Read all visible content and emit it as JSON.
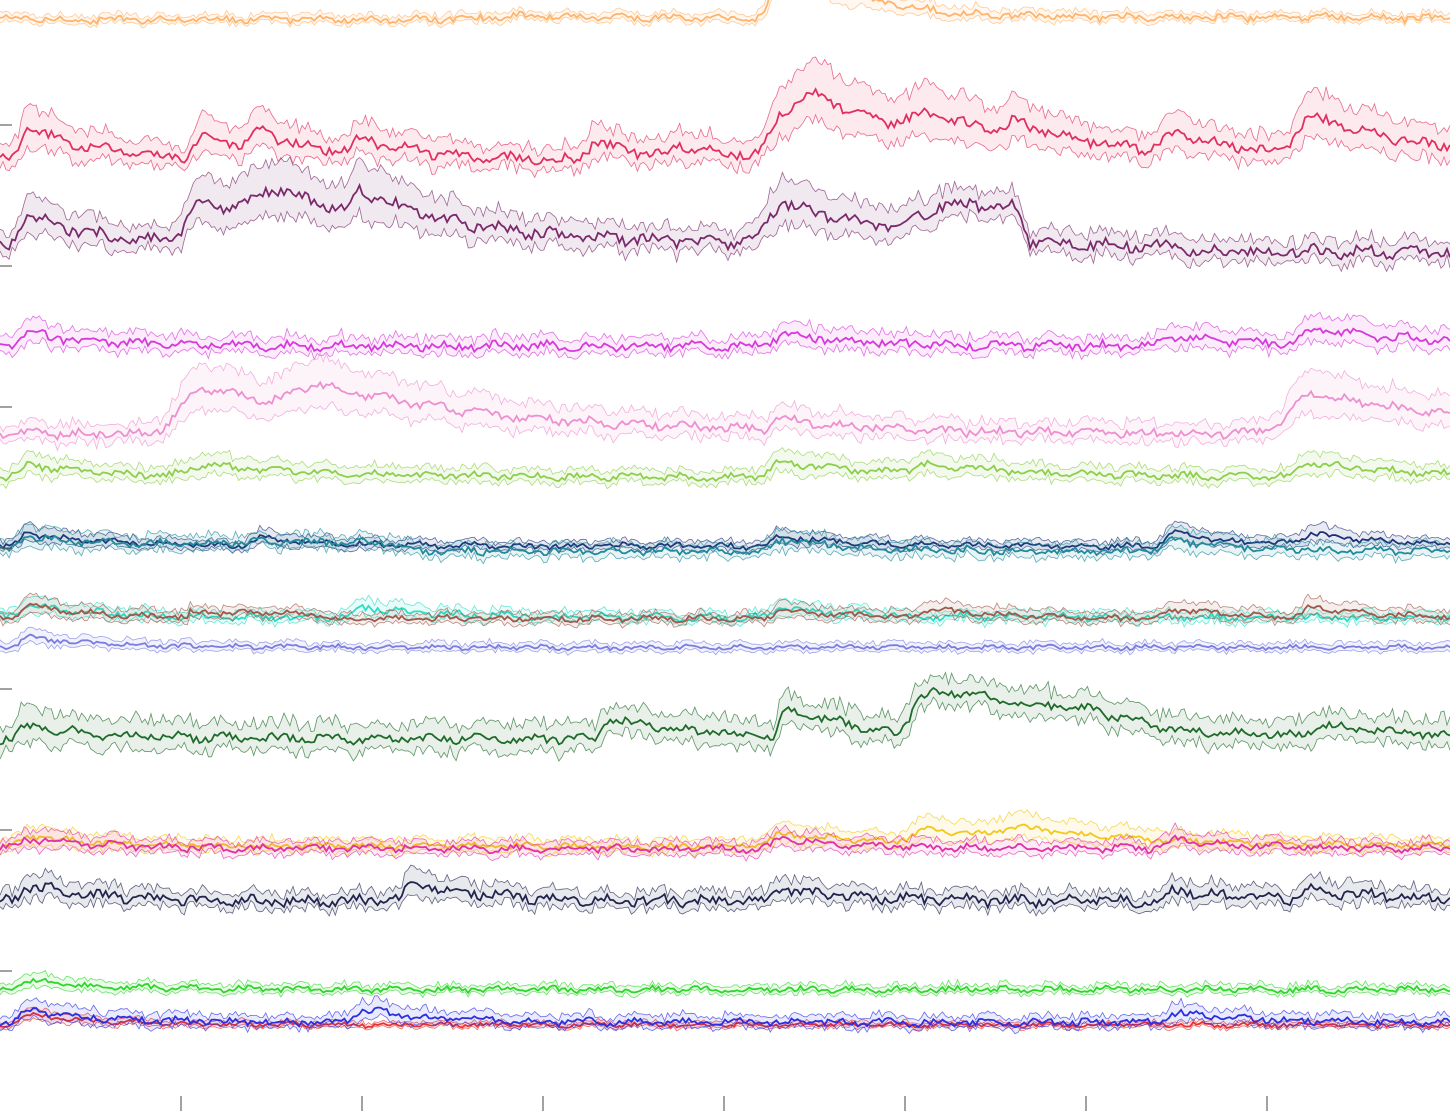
{
  "chart_data": {
    "type": "line",
    "title": "",
    "xlabel": "",
    "ylabel": "",
    "grid": false,
    "legend": "none",
    "x_ticks": 7,
    "y_ticks": 7,
    "series": [
      {
        "color": "#ffb46b",
        "band": 0.18,
        "base": [
          [
            0,
            0.62
          ],
          [
            0.06,
            0.55
          ],
          [
            0.14,
            0.6
          ],
          [
            0.28,
            0.55
          ],
          [
            0.36,
            0.72
          ],
          [
            0.52,
            0.6
          ],
          [
            0.66,
            0.58
          ],
          [
            0.78,
            0.62
          ],
          [
            0.9,
            0.66
          ],
          [
            1,
            0.62
          ]
        ],
        "peaks": [
          [
            0.54,
            2.2,
            0.012
          ]
        ],
        "noise": 0.12,
        "row": 0
      },
      {
        "color": "#e0305f",
        "band": 0.45,
        "base": [
          [
            0,
            0.55
          ],
          [
            1,
            0.55
          ]
        ],
        "peaks": [
          [
            0.02,
            1.3,
            0.01
          ],
          [
            0.14,
            0.9,
            0.01
          ],
          [
            0.18,
            0.7,
            0.01
          ],
          [
            0.25,
            0.6,
            0.01
          ],
          [
            0.41,
            0.65,
            0.01
          ],
          [
            0.47,
            0.45,
            0.01
          ],
          [
            0.54,
            1.6,
            0.015
          ],
          [
            0.565,
            1.35,
            0.03
          ],
          [
            0.64,
            0.8,
            0.02
          ],
          [
            0.7,
            0.5,
            0.01
          ],
          [
            0.81,
            0.7,
            0.01
          ],
          [
            0.905,
            1.5,
            0.02
          ]
        ],
        "noise": 0.18,
        "row": 1
      },
      {
        "color": "#7a2a6b",
        "band": 0.45,
        "base": [
          [
            0,
            0.55
          ],
          [
            0.62,
            0.55
          ],
          [
            0.63,
            1.0
          ],
          [
            0.64,
            1.35
          ],
          [
            0.655,
            1.8
          ],
          [
            0.7,
            1.8
          ],
          [
            0.71,
            0.45
          ],
          [
            0.81,
            0.45
          ],
          [
            0.82,
            0.3
          ],
          [
            1,
            0.3
          ]
        ],
        "peaks": [
          [
            0.02,
            1.2,
            0.01
          ],
          [
            0.14,
            1.6,
            0.02
          ],
          [
            0.19,
            1.3,
            0.03
          ],
          [
            0.25,
            0.9,
            0.01
          ],
          [
            0.54,
            1.6,
            0.02
          ]
        ],
        "noise": 0.2,
        "row": 2
      },
      {
        "color": "#d63adb",
        "band": 0.35,
        "base": [
          [
            0,
            0.55
          ],
          [
            1,
            0.55
          ]
        ],
        "peaks": [
          [
            0.02,
            0.5,
            0.01
          ],
          [
            0.54,
            0.5,
            0.01
          ],
          [
            0.81,
            0.4,
            0.01
          ],
          [
            0.91,
            0.6,
            0.02
          ]
        ],
        "noise": 0.15,
        "row": 3
      },
      {
        "color": "#ee8fd0",
        "band": 0.4,
        "base": [
          [
            0,
            0.45
          ],
          [
            1,
            0.45
          ]
        ],
        "peaks": [
          [
            0.14,
            1.8,
            0.03
          ],
          [
            0.22,
            1.0,
            0.03
          ],
          [
            0.54,
            0.45,
            0.01
          ],
          [
            0.905,
            1.6,
            0.03
          ]
        ],
        "noise": 0.15,
        "row": 4
      },
      {
        "color": "#8ccf4a",
        "band": 0.28,
        "base": [
          [
            0,
            0.5
          ],
          [
            1,
            0.5
          ]
        ],
        "peaks": [
          [
            0.02,
            0.5,
            0.01
          ],
          [
            0.14,
            0.45,
            0.02
          ],
          [
            0.54,
            0.6,
            0.015
          ],
          [
            0.64,
            0.4,
            0.02
          ],
          [
            0.905,
            0.55,
            0.015
          ]
        ],
        "noise": 0.12,
        "row": 5
      },
      {
        "color": "#1f2f78",
        "band": 0.2,
        "base": [
          [
            0,
            0.55
          ],
          [
            1,
            0.55
          ]
        ],
        "peaks": [
          [
            0.02,
            0.5,
            0.01
          ],
          [
            0.18,
            0.3,
            0.01
          ],
          [
            0.54,
            0.4,
            0.01
          ],
          [
            0.81,
            0.5,
            0.01
          ],
          [
            0.905,
            0.45,
            0.01
          ]
        ],
        "noise": 0.1,
        "row": 6
      },
      {
        "color": "#1f8a9a",
        "band": 0.3,
        "base": [
          [
            0,
            0.4
          ],
          [
            0.18,
            0.7
          ],
          [
            0.27,
            0.7
          ],
          [
            0.28,
            0.35
          ],
          [
            1,
            0.35
          ]
        ],
        "peaks": [
          [
            0.02,
            0.5,
            0.01
          ],
          [
            0.54,
            0.45,
            0.01
          ],
          [
            0.81,
            0.45,
            0.01
          ]
        ],
        "noise": 0.12,
        "row": 6
      },
      {
        "color": "#28e0c8",
        "band": 0.22,
        "base": [
          [
            0,
            0.5
          ],
          [
            1,
            0.5
          ]
        ],
        "peaks": [
          [
            0.02,
            0.45,
            0.01
          ],
          [
            0.25,
            0.4,
            0.01
          ],
          [
            0.54,
            0.35,
            0.01
          ]
        ],
        "noise": 0.12,
        "row": 7
      },
      {
        "color": "#a0584a",
        "band": 0.22,
        "base": [
          [
            0,
            0.45
          ],
          [
            0.13,
            0.45
          ],
          [
            0.13,
            0.65
          ],
          [
            0.22,
            0.65
          ],
          [
            0.23,
            0.45
          ],
          [
            1,
            0.45
          ]
        ],
        "peaks": [
          [
            0.02,
            0.5,
            0.01
          ],
          [
            0.54,
            0.35,
            0.01
          ],
          [
            0.64,
            0.35,
            0.01
          ],
          [
            0.81,
            0.35,
            0.01
          ],
          [
            0.905,
            0.4,
            0.01
          ]
        ],
        "noise": 0.1,
        "row": 7
      },
      {
        "color": "#7a7ce0",
        "band": 0.18,
        "base": [
          [
            0,
            0.5
          ],
          [
            1,
            0.5
          ]
        ],
        "peaks": [
          [
            0.02,
            0.4,
            0.01
          ]
        ],
        "noise": 0.08,
        "row": 8
      },
      {
        "color": "#1e6b2a",
        "band": 0.6,
        "base": [
          [
            0,
            0.45
          ],
          [
            0.41,
            0.45
          ],
          [
            0.42,
            1.2
          ],
          [
            0.47,
            0.8
          ],
          [
            0.535,
            0.5
          ],
          [
            0.54,
            1.6
          ],
          [
            0.62,
            0.6
          ],
          [
            0.635,
            2.2
          ],
          [
            0.66,
            2.3
          ],
          [
            0.7,
            1.9
          ],
          [
            0.75,
            1.6
          ],
          [
            0.8,
            0.9
          ],
          [
            0.82,
            0.7
          ],
          [
            0.9,
            0.6
          ],
          [
            0.91,
            1.0
          ],
          [
            1,
            0.55
          ]
        ],
        "peaks": [
          [
            0.02,
            0.5,
            0.01
          ]
        ],
        "noise": 0.15,
        "row": 9
      },
      {
        "color": "#f2c81a",
        "band": 0.28,
        "base": [
          [
            0,
            0.55
          ],
          [
            1,
            0.55
          ]
        ],
        "peaks": [
          [
            0.02,
            0.4,
            0.01
          ],
          [
            0.54,
            0.5,
            0.015
          ],
          [
            0.64,
            0.55,
            0.02
          ],
          [
            0.7,
            0.45,
            0.02
          ]
        ],
        "noise": 0.1,
        "row": 10
      },
      {
        "color": "#e030a8",
        "band": 0.28,
        "base": [
          [
            0,
            0.45
          ],
          [
            1,
            0.45
          ]
        ],
        "peaks": [
          [
            0.02,
            0.4,
            0.01
          ],
          [
            0.54,
            0.4,
            0.01
          ],
          [
            0.81,
            0.35,
            0.01
          ]
        ],
        "noise": 0.12,
        "row": 10
      },
      {
        "color": "#22244e",
        "band": 0.35,
        "base": [
          [
            0,
            0.55
          ],
          [
            1,
            0.55
          ]
        ],
        "peaks": [
          [
            0.02,
            0.6,
            0.01
          ],
          [
            0.285,
            0.7,
            0.01
          ],
          [
            0.54,
            0.5,
            0.01
          ],
          [
            0.81,
            0.45,
            0.01
          ],
          [
            0.905,
            0.45,
            0.01
          ]
        ],
        "noise": 0.18,
        "row": 11
      },
      {
        "color": "#2ed62a",
        "band": 0.18,
        "base": [
          [
            0,
            0.5
          ],
          [
            1,
            0.5
          ]
        ],
        "peaks": [
          [
            0.02,
            0.35,
            0.01
          ]
        ],
        "noise": 0.1,
        "row": 12
      },
      {
        "color": "#e83030",
        "band": 0.12,
        "base": [
          [
            0,
            0.4
          ],
          [
            1,
            0.4
          ]
        ],
        "peaks": [
          [
            0.02,
            0.4,
            0.01
          ]
        ],
        "noise": 0.08,
        "row": 13
      },
      {
        "color": "#2b2fe0",
        "band": 0.25,
        "base": [
          [
            0,
            0.5
          ],
          [
            1,
            0.5
          ]
        ],
        "peaks": [
          [
            0.02,
            0.45,
            0.01
          ],
          [
            0.25,
            0.5,
            0.01
          ],
          [
            0.81,
            0.4,
            0.01
          ]
        ],
        "noise": 0.12,
        "row": 13
      }
    ]
  }
}
